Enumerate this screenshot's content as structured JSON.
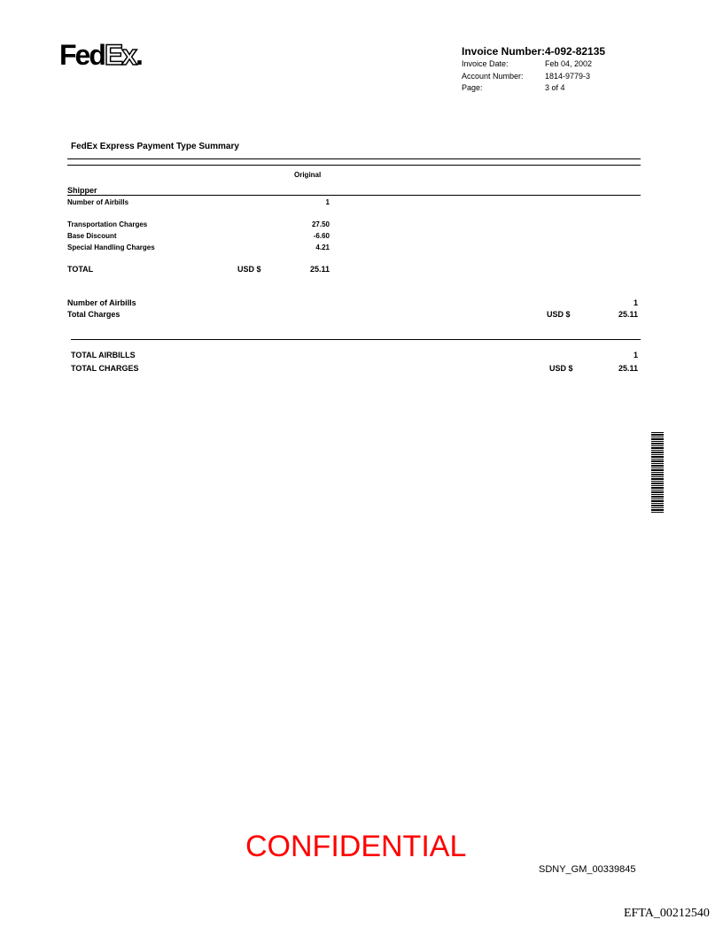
{
  "logo": {
    "text": "FedEx."
  },
  "header": {
    "invoice_number_label": "Invoice Number:",
    "invoice_number": "4-092-82135",
    "invoice_date_label": "Invoice Date:",
    "invoice_date": "Feb 04, 2002",
    "account_number_label": "Account Number:",
    "account_number": "1814-9779-3",
    "page_label": "Page:",
    "page": "3 of 4"
  },
  "section_title": "FedEx Express Payment Type Summary",
  "column_header": "Original",
  "shipper": {
    "label": "Shipper",
    "rows": [
      {
        "label": "Number of Airbills",
        "value": "1"
      },
      {
        "label": "Transportation Charges",
        "value": "27.50"
      },
      {
        "label": "Base Discount",
        "value": "-6.60"
      },
      {
        "label": "Special Handling Charges",
        "value": "4.21"
      }
    ],
    "total_label": "TOTAL",
    "total_currency": "USD $",
    "total_value": "25.11"
  },
  "subtotal": {
    "airbills_label": "Number of Airbills",
    "airbills_value": "1",
    "charges_label": "Total Charges",
    "charges_currency": "USD $",
    "charges_value": "25.11"
  },
  "grand_total": {
    "airbills_label": "TOTAL AIRBILLS",
    "airbills_value": "1",
    "charges_label": "TOTAL CHARGES",
    "charges_currency": "USD $",
    "charges_value": "25.11"
  },
  "stamp": {
    "text": "CONFIDENTIAL",
    "color": "#ff0000"
  },
  "bates": "SDNY_GM_00339845",
  "efta": "EFTA_00212540"
}
